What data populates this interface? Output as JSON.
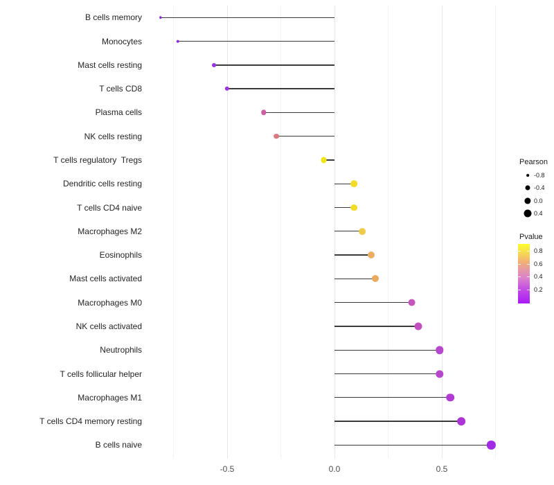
{
  "chart_data": {
    "type": "lollipop",
    "title": "",
    "xlabel": "",
    "ylabel": "",
    "x_axis": {
      "major_ticks": [
        -0.5,
        0.0,
        0.5
      ],
      "major_tick_labels": [
        "-0.5",
        "0.0",
        "0.5"
      ],
      "minor_ticks": [
        -0.75,
        -0.25,
        0.25,
        0.75
      ],
      "xlim": [
        -0.89,
        0.8
      ],
      "grid": "on"
    },
    "baseline_x": 0.0,
    "stem_color": "#3a3a3a",
    "rows": [
      {
        "label": "B cells memory",
        "pearson": -0.81,
        "pvalue_color": "#8926dc"
      },
      {
        "label": "Monocytes",
        "pearson": -0.73,
        "pvalue_color": "#8e2be1"
      },
      {
        "label": "Mast cells resting",
        "pearson": -0.56,
        "pvalue_color": "#9933e2"
      },
      {
        "label": "T cells CD8",
        "pearson": -0.5,
        "pvalue_color": "#9c34e2"
      },
      {
        "label": "Plasma cells",
        "pearson": -0.33,
        "pvalue_color": "#ce5fa5"
      },
      {
        "label": "NK cells resting",
        "pearson": -0.27,
        "pvalue_color": "#db7980"
      },
      {
        "label": "T cells regulatory  Tregs",
        "pearson": -0.05,
        "pvalue_color": "#f2e41a"
      },
      {
        "label": "Dendritic cells resting",
        "pearson": 0.09,
        "pvalue_color": "#f2dc28"
      },
      {
        "label": "T cells CD4 naive",
        "pearson": 0.09,
        "pvalue_color": "#f2dc28"
      },
      {
        "label": "Macrophages M2",
        "pearson": 0.13,
        "pvalue_color": "#efca4b"
      },
      {
        "label": "Eosinophils",
        "pearson": 0.17,
        "pvalue_color": "#ebae62"
      },
      {
        "label": "Mast cells activated",
        "pearson": 0.19,
        "pvalue_color": "#eaaa5f"
      },
      {
        "label": "Macrophages M0",
        "pearson": 0.36,
        "pvalue_color": "#c454be"
      },
      {
        "label": "NK cells activated",
        "pearson": 0.39,
        "pvalue_color": "#c250c1"
      },
      {
        "label": "Neutrophils",
        "pearson": 0.49,
        "pvalue_color": "#b747cc"
      },
      {
        "label": "T cells follicular helper",
        "pearson": 0.49,
        "pvalue_color": "#b747cc"
      },
      {
        "label": "Macrophages M1",
        "pearson": 0.54,
        "pvalue_color": "#b13bd3"
      },
      {
        "label": "T cells CD4 memory resting",
        "pearson": 0.59,
        "pvalue_color": "#ac35d8"
      },
      {
        "label": "B cells naive",
        "pearson": 0.73,
        "pvalue_color": "#a22be5"
      }
    ],
    "legend": {
      "size": {
        "title": "Pearson",
        "items": [
          {
            "label": "-0.8",
            "value": -0.8
          },
          {
            "label": "-0.4",
            "value": -0.4
          },
          {
            "label": "0.0",
            "value": 0.0
          },
          {
            "label": "0.4",
            "value": 0.4
          }
        ],
        "dot_color": "#000000"
      },
      "color": {
        "title": "Pvalue",
        "tick_labels": [
          "0.8",
          "0.6",
          "0.4",
          "0.2"
        ],
        "tick_positions": [
          0.116,
          0.334,
          0.55,
          0.767
        ],
        "gradient_stops": [
          {
            "pos": 0,
            "color": "#fcfd2d"
          },
          {
            "pos": 0.13,
            "color": "#f8df4d"
          },
          {
            "pos": 0.3,
            "color": "#f1b175"
          },
          {
            "pos": 0.45,
            "color": "#e596ab"
          },
          {
            "pos": 0.58,
            "color": "#da81cc"
          },
          {
            "pos": 0.75,
            "color": "#c44fe2"
          },
          {
            "pos": 1,
            "color": "#a81af6"
          }
        ]
      }
    }
  }
}
